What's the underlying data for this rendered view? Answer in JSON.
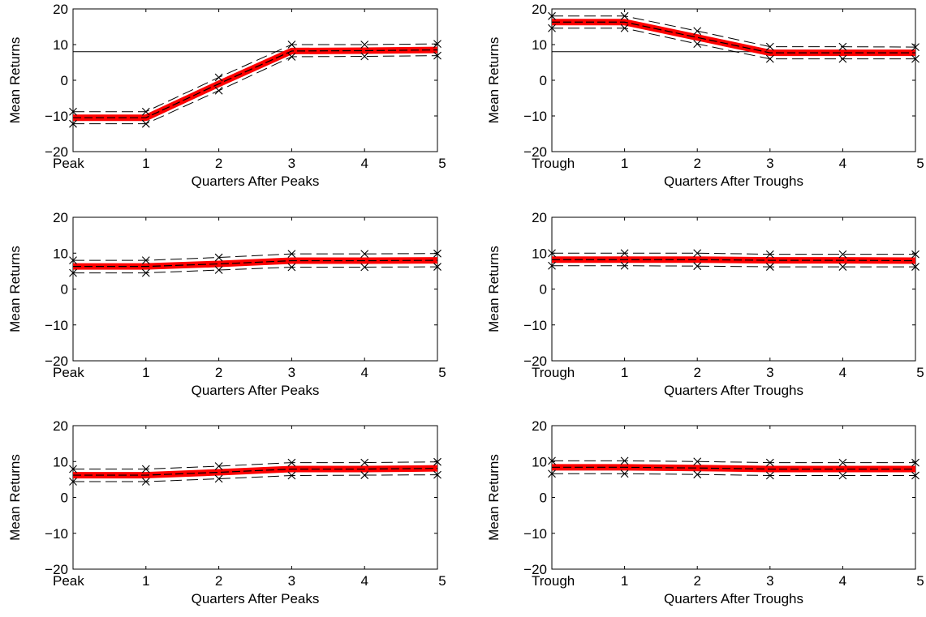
{
  "figure": {
    "colors": {
      "mean_line": "#ff0000",
      "band_line": "#000000",
      "ref_line": "#000000",
      "axes": "#000000"
    }
  },
  "chart_data": [
    {
      "type": "line",
      "panel": "peaks-1",
      "xlabel": "Quarters After Peaks",
      "ylabel": "Mean Returns",
      "x": [
        0,
        1,
        2,
        3,
        4,
        5
      ],
      "x_tick_labels": [
        "Peak",
        "1",
        "2",
        "3",
        "4",
        "5"
      ],
      "ylim": [
        -20,
        20
      ],
      "y_ticks": [
        -20,
        -10,
        0,
        10,
        20
      ],
      "reference_line": 8,
      "mean": [
        -10.5,
        -10.5,
        -1.0,
        8.2,
        8.3,
        8.5
      ],
      "upper": [
        -8.8,
        -8.8,
        0.8,
        10.0,
        10.0,
        10.2
      ],
      "lower": [
        -12.2,
        -12.2,
        -2.9,
        6.6,
        6.7,
        6.9
      ]
    },
    {
      "type": "line",
      "panel": "troughs-1",
      "xlabel": "Quarters After Troughs",
      "ylabel": "Mean Returns",
      "x": [
        0,
        1,
        2,
        3,
        4,
        5
      ],
      "x_tick_labels": [
        "Trough",
        "1",
        "2",
        "3",
        "4",
        "5"
      ],
      "ylim": [
        -20,
        20
      ],
      "y_ticks": [
        -20,
        -10,
        0,
        10,
        20
      ],
      "reference_line": 8,
      "mean": [
        16.3,
        16.3,
        12.0,
        7.7,
        7.7,
        7.7
      ],
      "upper": [
        18.0,
        18.0,
        13.8,
        9.4,
        9.4,
        9.3
      ],
      "lower": [
        14.6,
        14.6,
        10.2,
        6.0,
        6.0,
        6.0
      ]
    },
    {
      "type": "line",
      "panel": "peaks-2",
      "xlabel": "Quarters After Peaks",
      "ylabel": "Mean Returns",
      "x": [
        0,
        1,
        2,
        3,
        4,
        5
      ],
      "x_tick_labels": [
        "Peak",
        "1",
        "2",
        "3",
        "4",
        "5"
      ],
      "ylim": [
        -20,
        20
      ],
      "y_ticks": [
        -20,
        -10,
        0,
        10,
        20
      ],
      "mean": [
        6.3,
        6.3,
        7.0,
        7.9,
        7.9,
        8.0
      ],
      "upper": [
        8.0,
        8.0,
        8.8,
        9.8,
        9.8,
        9.9
      ],
      "lower": [
        4.5,
        4.5,
        5.3,
        6.1,
        6.1,
        6.2
      ]
    },
    {
      "type": "line",
      "panel": "troughs-2",
      "xlabel": "Quarters After Troughs",
      "ylabel": "Mean Returns",
      "x": [
        0,
        1,
        2,
        3,
        4,
        5
      ],
      "x_tick_labels": [
        "Trough",
        "1",
        "2",
        "3",
        "4",
        "5"
      ],
      "ylim": [
        -20,
        20
      ],
      "y_ticks": [
        -20,
        -10,
        0,
        10,
        20
      ],
      "mean": [
        8.2,
        8.2,
        8.2,
        8.0,
        8.0,
        7.9
      ],
      "upper": [
        10.0,
        10.0,
        10.0,
        9.7,
        9.7,
        9.7
      ],
      "lower": [
        6.5,
        6.5,
        6.4,
        6.2,
        6.2,
        6.2
      ]
    },
    {
      "type": "line",
      "panel": "peaks-3",
      "xlabel": "Quarters After Peaks",
      "ylabel": "Mean Returns",
      "x": [
        0,
        1,
        2,
        3,
        4,
        5
      ],
      "x_tick_labels": [
        "Peak",
        "1",
        "2",
        "3",
        "4",
        "5"
      ],
      "ylim": [
        -20,
        20
      ],
      "y_ticks": [
        -20,
        -10,
        0,
        10,
        20
      ],
      "mean": [
        6.2,
        6.2,
        7.0,
        7.9,
        7.9,
        8.1
      ],
      "upper": [
        7.9,
        7.9,
        8.7,
        9.7,
        9.7,
        9.9
      ],
      "lower": [
        4.4,
        4.4,
        5.2,
        6.1,
        6.2,
        6.3
      ]
    },
    {
      "type": "line",
      "panel": "troughs-3",
      "xlabel": "Quarters After Troughs",
      "ylabel": "Mean Returns",
      "x": [
        0,
        1,
        2,
        3,
        4,
        5
      ],
      "x_tick_labels": [
        "Trough",
        "1",
        "2",
        "3",
        "4",
        "5"
      ],
      "ylim": [
        -20,
        20
      ],
      "y_ticks": [
        -20,
        -10,
        0,
        10,
        20
      ],
      "mean": [
        8.4,
        8.4,
        8.2,
        7.9,
        7.9,
        7.9
      ],
      "upper": [
        10.2,
        10.2,
        10.0,
        9.7,
        9.7,
        9.7
      ],
      "lower": [
        6.6,
        6.6,
        6.4,
        6.1,
        6.1,
        6.1
      ]
    }
  ]
}
